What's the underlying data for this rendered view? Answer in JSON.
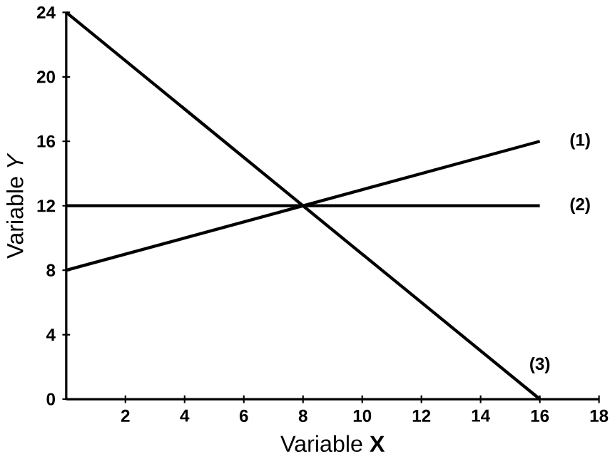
{
  "chart_data": {
    "type": "line",
    "xlabel": "Variable **X**",
    "ylabel": "Variable *Y*",
    "x": [
      0,
      16
    ],
    "series": [
      {
        "name": "(1)",
        "color": "#000000",
        "values": [
          8,
          16
        ]
      },
      {
        "name": "(2)",
        "color": "#000000",
        "values": [
          12,
          12
        ]
      },
      {
        "name": "(3)",
        "color": "#000000",
        "values": [
          24,
          0
        ]
      }
    ],
    "xlim": [
      0,
      18
    ],
    "xticks": [
      2,
      4,
      6,
      8,
      10,
      12,
      14,
      16,
      18
    ],
    "ylim": [
      0,
      24
    ],
    "yticks": [
      0,
      4,
      8,
      12,
      16,
      20,
      24
    ],
    "grid": false,
    "legend": false,
    "marker": "none",
    "line_style": "solid"
  }
}
